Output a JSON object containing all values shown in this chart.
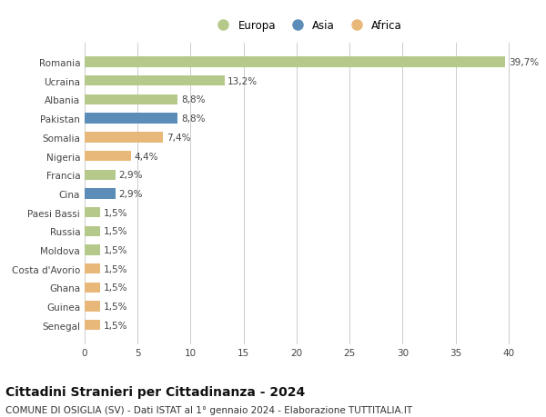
{
  "categories": [
    "Romania",
    "Ucraina",
    "Albania",
    "Pakistan",
    "Somalia",
    "Nigeria",
    "Francia",
    "Cina",
    "Paesi Bassi",
    "Russia",
    "Moldova",
    "Costa d'Avorio",
    "Ghana",
    "Guinea",
    "Senegal"
  ],
  "values": [
    39.7,
    13.2,
    8.8,
    8.8,
    7.4,
    4.4,
    2.9,
    2.9,
    1.5,
    1.5,
    1.5,
    1.5,
    1.5,
    1.5,
    1.5
  ],
  "labels": [
    "39,7%",
    "13,2%",
    "8,8%",
    "8,8%",
    "7,4%",
    "4,4%",
    "2,9%",
    "2,9%",
    "1,5%",
    "1,5%",
    "1,5%",
    "1,5%",
    "1,5%",
    "1,5%",
    "1,5%"
  ],
  "continents": [
    "Europa",
    "Europa",
    "Europa",
    "Asia",
    "Africa",
    "Africa",
    "Europa",
    "Asia",
    "Europa",
    "Europa",
    "Europa",
    "Africa",
    "Africa",
    "Africa",
    "Africa"
  ],
  "continent_colors": {
    "Europa": "#b5c98a",
    "Asia": "#5b8db8",
    "Africa": "#e8b87a"
  },
  "legend_entries": [
    "Europa",
    "Asia",
    "Africa"
  ],
  "title": "Cittadini Stranieri per Cittadinanza - 2024",
  "subtitle": "COMUNE DI OSIGLIA (SV) - Dati ISTAT al 1° gennaio 2024 - Elaborazione TUTTITALIA.IT",
  "xlim": [
    0,
    42
  ],
  "xticks": [
    0,
    5,
    10,
    15,
    20,
    25,
    30,
    35,
    40
  ],
  "background_color": "#ffffff",
  "grid_color": "#cccccc",
  "bar_height": 0.55,
  "title_fontsize": 10,
  "subtitle_fontsize": 7.5,
  "label_fontsize": 7.5,
  "tick_fontsize": 7.5,
  "legend_fontsize": 8.5
}
